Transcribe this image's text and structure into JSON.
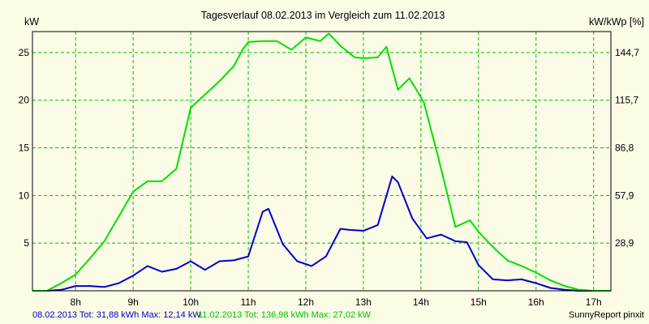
{
  "chart_data": {
    "type": "line",
    "title": "Tagesverlauf 08.02.2013 im Vergleich zum 11.02.2013",
    "y_left_label": "kW",
    "y_right_label": "kW/kWp [%]",
    "x_ticks": [
      "8h",
      "9h",
      "10h",
      "11h",
      "12h",
      "13h",
      "14h",
      "15h",
      "16h",
      "17h"
    ],
    "x_tick_values": [
      8,
      9,
      10,
      11,
      12,
      13,
      14,
      15,
      16,
      17
    ],
    "xlim": [
      7.25,
      17.3
    ],
    "ylim": [
      0,
      27.2
    ],
    "y_ticks": [
      "5",
      "10",
      "15",
      "20",
      "25"
    ],
    "y_tick_values": [
      5,
      10,
      15,
      20,
      25
    ],
    "y_right_ticks": [
      "28,9",
      "57,9",
      "86,8",
      "115,7",
      "144,7"
    ],
    "grid": true,
    "colors": {
      "background": "#fbfbe6",
      "grid": "#00c000",
      "axis": "#000000",
      "text": "#000000"
    },
    "series": [
      {
        "name": "08.02.2013",
        "color": "#0000cc",
        "x": [
          7.25,
          7.5,
          7.75,
          8.0,
          8.25,
          8.5,
          8.75,
          9.0,
          9.25,
          9.5,
          9.75,
          10.0,
          10.25,
          10.5,
          10.75,
          11.0,
          11.25,
          11.35,
          11.6,
          11.85,
          12.1,
          12.35,
          12.6,
          12.75,
          13.0,
          13.25,
          13.5,
          13.6,
          13.85,
          14.1,
          14.35,
          14.6,
          14.8,
          15.0,
          15.25,
          15.5,
          15.75,
          16.0,
          16.25,
          16.5,
          16.75,
          17.0,
          17.3
        ],
        "y": [
          0,
          0,
          0.1,
          0.5,
          0.5,
          0.4,
          0.8,
          1.6,
          2.6,
          2.0,
          2.3,
          3.1,
          2.2,
          3.1,
          3.2,
          3.6,
          8.3,
          8.6,
          4.9,
          3.1,
          2.6,
          3.6,
          6.5,
          6.4,
          6.3,
          6.9,
          12.0,
          11.4,
          7.6,
          5.5,
          5.9,
          5.2,
          5.1,
          2.7,
          1.2,
          1.1,
          1.2,
          0.8,
          0.3,
          0.1,
          0,
          0,
          0
        ]
      },
      {
        "name": "11.02.2013",
        "color": "#00e000",
        "x": [
          7.25,
          7.5,
          7.75,
          8.0,
          8.25,
          8.5,
          8.75,
          9.0,
          9.25,
          9.5,
          9.75,
          10.0,
          10.25,
          10.5,
          10.75,
          10.9,
          11.0,
          11.25,
          11.5,
          11.75,
          12.0,
          12.25,
          12.4,
          12.6,
          12.85,
          13.0,
          13.25,
          13.4,
          13.6,
          13.8,
          14.05,
          14.3,
          14.6,
          14.85,
          15.0,
          15.25,
          15.5,
          15.75,
          16.0,
          16.25,
          16.5,
          16.75,
          17.0,
          17.3
        ],
        "y": [
          0,
          0,
          0.8,
          1.7,
          3.4,
          5.2,
          7.8,
          10.4,
          11.5,
          11.5,
          12.8,
          19.2,
          20.6,
          22.0,
          23.6,
          25.3,
          26.1,
          26.2,
          26.2,
          25.3,
          26.6,
          26.2,
          27.0,
          25.7,
          24.5,
          24.4,
          24.5,
          25.6,
          21.1,
          22.3,
          19.8,
          14.0,
          6.7,
          7.4,
          6.2,
          4.6,
          3.2,
          2.6,
          1.9,
          1.1,
          0.5,
          0.1,
          0,
          0
        ]
      }
    ]
  },
  "footer": {
    "left_series1": "08.02.2013 Tot: 31,88 kWh Max: 12,14 kW",
    "left_series2": "11.02.2013 Tot: 136,98 kWh Max: 27,02 kW",
    "right": "SunnyReport pinxit"
  }
}
